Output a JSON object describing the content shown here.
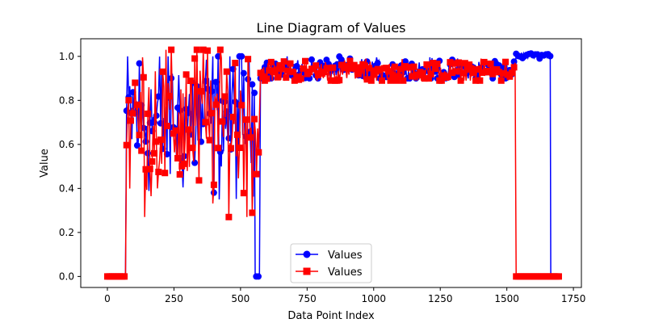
{
  "chart_data": {
    "type": "line",
    "title": "Line Diagram of Values",
    "xlabel": "Data Point Index",
    "ylabel": "Value",
    "xlim": [
      -100,
      1780
    ],
    "ylim": [
      -0.05,
      1.08
    ],
    "xticks": [
      0,
      250,
      500,
      750,
      1000,
      1250,
      1500,
      1750
    ],
    "yticks": [
      0.0,
      0.2,
      0.4,
      0.6,
      0.8,
      1.0
    ],
    "xtick_labels": [
      "0",
      "250",
      "500",
      "750",
      "1000",
      "1250",
      "1500",
      "1750"
    ],
    "ytick_labels": [
      "0.0",
      "0.2",
      "0.4",
      "0.6",
      "0.8",
      "1.0"
    ],
    "grid": false,
    "legend_position": "bottom-center",
    "series": [
      {
        "name": "Values",
        "color": "#0000ff",
        "marker": "circle",
        "segments": [
          {
            "x_start": 0,
            "x_end": 72,
            "pattern": "constant",
            "value": 0.0
          },
          {
            "x_start": 72,
            "x_end": 555,
            "pattern": "noisy",
            "min": 0.33,
            "max": 1.0,
            "mean": 0.72
          },
          {
            "x_start": 555,
            "x_end": 575,
            "pattern": "constant",
            "value": 0.0
          },
          {
            "x_start": 575,
            "x_end": 1535,
            "pattern": "noisy",
            "min": 0.9,
            "max": 1.0,
            "mean": 0.935
          },
          {
            "x_start": 1535,
            "x_end": 1665,
            "pattern": "noisy",
            "min": 0.99,
            "max": 1.02,
            "mean": 1.005
          },
          {
            "x_start": 1665,
            "x_end": 1690,
            "pattern": "constant",
            "value": 0.0
          }
        ]
      },
      {
        "name": "Values",
        "color": "#ff0000",
        "marker": "square",
        "segments": [
          {
            "x_start": 0,
            "x_end": 72,
            "pattern": "constant",
            "value": 0.0
          },
          {
            "x_start": 72,
            "x_end": 575,
            "pattern": "noisy",
            "min": 0.27,
            "max": 1.03,
            "mean": 0.7
          },
          {
            "x_start": 575,
            "x_end": 1535,
            "pattern": "noisy",
            "min": 0.89,
            "max": 0.99,
            "mean": 0.93
          },
          {
            "x_start": 1535,
            "x_end": 1700,
            "pattern": "constant",
            "value": 0.0
          }
        ]
      }
    ]
  }
}
